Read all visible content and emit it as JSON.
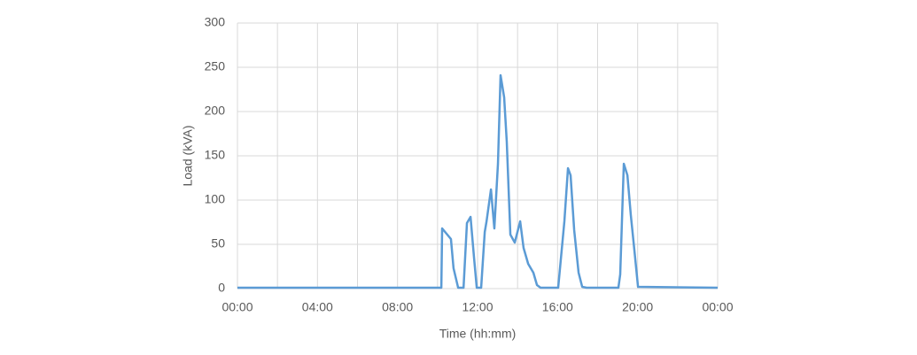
{
  "chart_data": {
    "type": "line",
    "xlabel": "Time (hh:mm)",
    "ylabel": "Load (kVA)",
    "x": [
      0,
      10.19,
      10.23,
      10.67,
      10.8,
      11.03,
      11.3,
      11.47,
      11.65,
      11.82,
      11.96,
      12.18,
      12.36,
      12.45,
      12.67,
      12.84,
      13.02,
      13.15,
      13.33,
      13.46,
      13.64,
      13.86,
      14.13,
      14.3,
      14.53,
      14.79,
      14.97,
      15.15,
      16.03,
      16.34,
      16.52,
      16.65,
      16.83,
      17.05,
      17.23,
      17.45,
      19.04,
      19.13,
      19.31,
      19.49,
      19.66,
      19.84,
      20.02,
      24
    ],
    "series": [
      {
        "name": "Load",
        "color": "#5b9bd5",
        "values": [
          1,
          1,
          68,
          56,
          23,
          1,
          1,
          74,
          81,
          36,
          1,
          1,
          64,
          76,
          112,
          68,
          141,
          241,
          216,
          166,
          61,
          52,
          76,
          46,
          28,
          18,
          4,
          1,
          1,
          76,
          136,
          128,
          66,
          18,
          2,
          1,
          1,
          16,
          141,
          128,
          83,
          43,
          2,
          1
        ]
      }
    ],
    "xlim": [
      0,
      24
    ],
    "xticks": [
      {
        "value": 0,
        "label": "00:00"
      },
      {
        "value": 4,
        "label": "04:00"
      },
      {
        "value": 8,
        "label": "08:00"
      },
      {
        "value": 12,
        "label": "12:00"
      },
      {
        "value": 16,
        "label": "16:00"
      },
      {
        "value": 20,
        "label": "20:00"
      },
      {
        "value": 24,
        "label": "00:00"
      }
    ],
    "x_minor_grid": [
      2,
      6,
      10,
      14,
      18,
      22
    ],
    "ylim": [
      0,
      300
    ],
    "yticks": [
      0,
      50,
      100,
      150,
      200,
      250,
      300
    ],
    "grid": true
  }
}
